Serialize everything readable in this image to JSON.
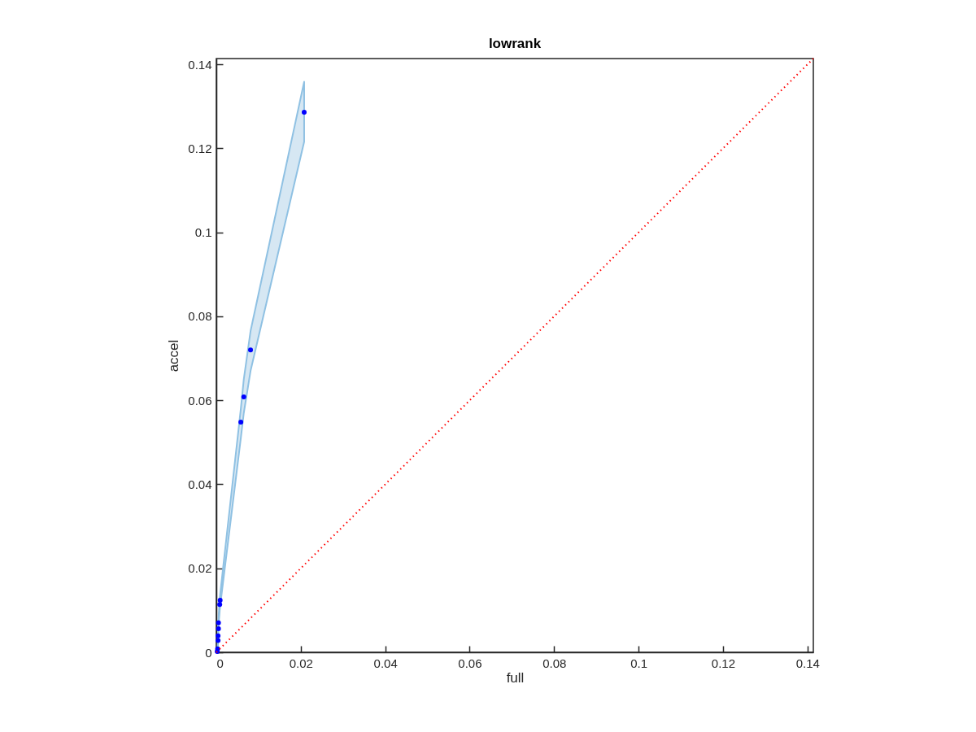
{
  "chart_data": {
    "type": "scatter",
    "title": "lowrank",
    "xlabel": "full",
    "ylabel": "accel",
    "xlim": [
      0,
      0.1414
    ],
    "ylim": [
      0,
      0.1414
    ],
    "xticks": [
      0,
      0.02,
      0.04,
      0.06,
      0.08,
      0.1,
      0.12,
      0.14
    ],
    "yticks": [
      0,
      0.02,
      0.04,
      0.06,
      0.08,
      0.1,
      0.12,
      0.14
    ],
    "grid": false,
    "marker": "circle",
    "series": [
      {
        "color": "#0000ff",
        "x": [
          0.0002,
          0.0003,
          0.0004,
          0.0004,
          0.0005,
          0.0005,
          0.0008,
          0.0009,
          0.0058,
          0.0065,
          0.0081,
          0.0208
        ],
        "values": [
          0.0002,
          0.0008,
          0.0028,
          0.0039,
          0.0056,
          0.007,
          0.0114,
          0.0124,
          0.0548,
          0.0608,
          0.072,
          0.1286
        ],
        "lower": [
          0,
          0.0004,
          0.002,
          0.003,
          0.0046,
          0.006,
          0.01,
          0.011,
          0.051,
          0.057,
          0.067,
          0.1216
        ],
        "upper": [
          0.0006,
          0.0014,
          0.0036,
          0.0048,
          0.0066,
          0.008,
          0.0128,
          0.0138,
          0.058,
          0.065,
          0.0765,
          0.1359
        ]
      },
      {
        "type": "line",
        "color": "#ff0000",
        "line_style": "dotted",
        "marker": "none",
        "x": [
          0,
          0.1414
        ],
        "values": [
          0,
          0.1414
        ]
      }
    ]
  }
}
